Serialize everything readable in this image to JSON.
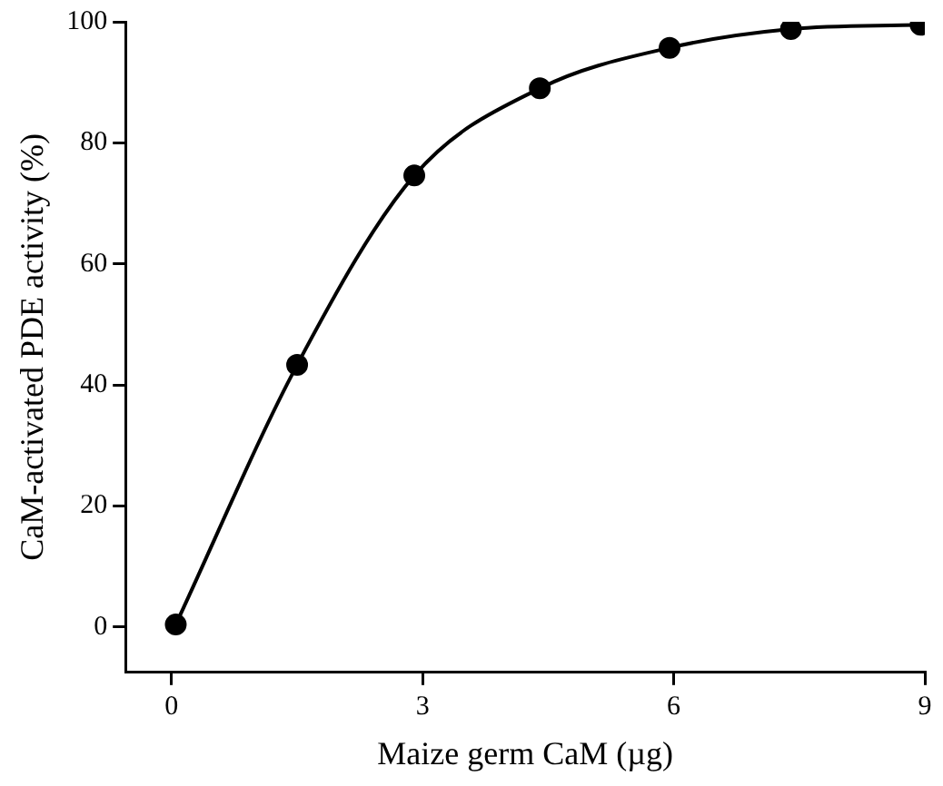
{
  "chart_data": {
    "type": "line",
    "xlabel": "Maize germ CaM (µg)",
    "ylabel": "CaM-activated PDE activity (%)",
    "x": [
      0.05,
      1.5,
      2.9,
      4.4,
      5.95,
      7.4,
      8.95
    ],
    "series": [
      {
        "color": "#000000",
        "values": [
          0.4,
          43.3,
          74.6,
          89,
          95.7,
          98.8,
          99.5
        ]
      }
    ],
    "xlim": [
      -0.55,
      9
    ],
    "xticks": [
      0,
      3,
      6,
      9
    ],
    "ylim": [
      -7.5,
      100
    ],
    "yticks": [
      0,
      20,
      40,
      60,
      80,
      100
    ],
    "grid": false,
    "legend": false,
    "marker": "circle",
    "line_style": "solid"
  }
}
